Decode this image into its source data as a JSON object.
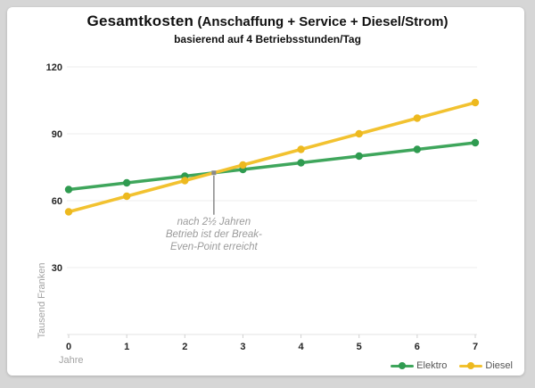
{
  "title": {
    "main": "Gesamtkosten",
    "paren": "(Anschaffung + Service + Diesel/Strom)",
    "subtitle": "basierend auf 4 Betriebsstunden/Tag"
  },
  "chart_data": {
    "type": "line",
    "x": [
      0,
      1,
      2,
      3,
      4,
      5,
      6,
      7
    ],
    "series": [
      {
        "name": "Elektro",
        "color": "#3fa65c",
        "dot_color": "#2f9b50",
        "values": [
          65,
          68,
          71,
          74,
          77,
          80,
          83,
          86
        ]
      },
      {
        "name": "Diesel",
        "color": "#f2c230",
        "dot_color": "#edb91f",
        "values": [
          55,
          62,
          69,
          76,
          83,
          90,
          97,
          104
        ]
      }
    ],
    "xlabel": "Jahre",
    "ylabel": "Tausend Franken",
    "yticks": [
      30,
      60,
      90,
      120
    ],
    "ylim": [
      0,
      130
    ],
    "grid": true,
    "legend_position": "bottom-right",
    "annotation": {
      "x": 2.5,
      "y": 72.5,
      "text_lines": [
        "nach 2½ Jahren",
        "Betrieb ist der Break-",
        "Even-Point erreicht"
      ],
      "color": "#9b9b9b"
    },
    "axis_label_color": "#a3a3a3",
    "tick_label_color": "#262626",
    "gridline_color": "#ececec"
  }
}
